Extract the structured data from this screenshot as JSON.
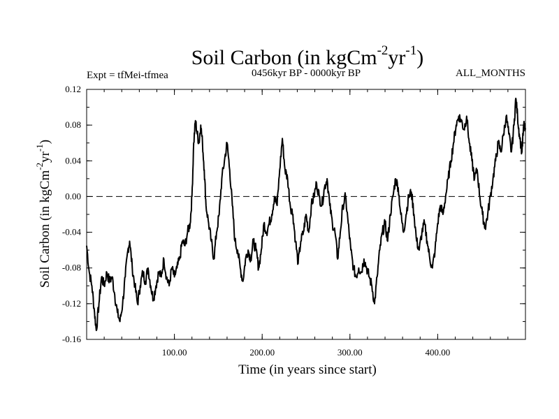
{
  "chart_data": {
    "type": "line",
    "title_main": "Soil Carbon (in kgCm",
    "title_sup1": "-2",
    "title_mid": "yr",
    "title_sup2": "-1",
    "title_end": ")",
    "left_label": "Expt = tfMei-tfmea",
    "center_label": "0456kyr BP - 0000kyr BP",
    "right_label": "ALL_MONTHS",
    "xlabel": "Time (in years since start)",
    "ylabel_main": "Soil Carbon (in kgCm",
    "ylabel_sup1": "-2",
    "ylabel_mid": "yr",
    "ylabel_sup2": "-1",
    "ylabel_end": ")",
    "xlim": [
      0,
      500
    ],
    "ylim": [
      -0.16,
      0.12
    ],
    "xticks": [
      100,
      200,
      300,
      400
    ],
    "xtick_labels": [
      "100.00",
      "200.00",
      "300.00",
      "400.00"
    ],
    "yticks": [
      0.12,
      0.08,
      0.04,
      0.0,
      -0.04,
      -0.08,
      -0.12,
      -0.16
    ],
    "ytick_labels": [
      "0.12",
      "0.08",
      "0.04",
      "0.00",
      "-0.04",
      "-0.08",
      "-0.12",
      "-0.16"
    ],
    "zero_line": 0.0,
    "series_points": [
      [
        0,
        -0.055
      ],
      [
        3,
        -0.085
      ],
      [
        6,
        -0.1
      ],
      [
        9,
        -0.13
      ],
      [
        11,
        -0.15
      ],
      [
        14,
        -0.12
      ],
      [
        17,
        -0.09
      ],
      [
        20,
        -0.1
      ],
      [
        23,
        -0.085
      ],
      [
        26,
        -0.095
      ],
      [
        29,
        -0.09
      ],
      [
        32,
        -0.11
      ],
      [
        35,
        -0.13
      ],
      [
        38,
        -0.14
      ],
      [
        41,
        -0.12
      ],
      [
        44,
        -0.09
      ],
      [
        47,
        -0.06
      ],
      [
        49,
        -0.05
      ],
      [
        52,
        -0.08
      ],
      [
        55,
        -0.1
      ],
      [
        58,
        -0.12
      ],
      [
        61,
        -0.1
      ],
      [
        64,
        -0.085
      ],
      [
        67,
        -0.095
      ],
      [
        70,
        -0.08
      ],
      [
        73,
        -0.1
      ],
      [
        76,
        -0.115
      ],
      [
        79,
        -0.1
      ],
      [
        82,
        -0.085
      ],
      [
        85,
        -0.09
      ],
      [
        88,
        -0.07
      ],
      [
        91,
        -0.09
      ],
      [
        94,
        -0.1
      ],
      [
        97,
        -0.08
      ],
      [
        100,
        -0.09
      ],
      [
        103,
        -0.08
      ],
      [
        106,
        -0.07
      ],
      [
        109,
        -0.05
      ],
      [
        112,
        -0.055
      ],
      [
        115,
        -0.04
      ],
      [
        118,
        -0.03
      ],
      [
        120,
        0.0
      ],
      [
        122,
        0.06
      ],
      [
        124,
        0.085
      ],
      [
        126,
        0.07
      ],
      [
        128,
        0.06
      ],
      [
        130,
        0.08
      ],
      [
        132,
        0.06
      ],
      [
        134,
        0.03
      ],
      [
        136,
        -0.01
      ],
      [
        139,
        -0.03
      ],
      [
        142,
        -0.05
      ],
      [
        145,
        -0.07
      ],
      [
        148,
        -0.04
      ],
      [
        151,
        -0.02
      ],
      [
        154,
        0.02
      ],
      [
        157,
        0.04
      ],
      [
        160,
        0.06
      ],
      [
        163,
        0.03
      ],
      [
        166,
        -0.01
      ],
      [
        169,
        -0.05
      ],
      [
        172,
        -0.06
      ],
      [
        175,
        -0.08
      ],
      [
        178,
        -0.095
      ],
      [
        181,
        -0.07
      ],
      [
        184,
        -0.06
      ],
      [
        187,
        -0.07
      ],
      [
        190,
        -0.05
      ],
      [
        193,
        -0.06
      ],
      [
        196,
        -0.08
      ],
      [
        199,
        -0.06
      ],
      [
        202,
        -0.03
      ],
      [
        205,
        -0.04
      ],
      [
        208,
        -0.03
      ],
      [
        211,
        -0.02
      ],
      [
        214,
        0.0
      ],
      [
        217,
        -0.01
      ],
      [
        220,
        0.03
      ],
      [
        223,
        0.065
      ],
      [
        226,
        0.03
      ],
      [
        229,
        0.02
      ],
      [
        232,
        -0.01
      ],
      [
        235,
        -0.02
      ],
      [
        238,
        -0.05
      ],
      [
        241,
        -0.075
      ],
      [
        244,
        -0.05
      ],
      [
        247,
        -0.04
      ],
      [
        250,
        -0.02
      ],
      [
        253,
        -0.04
      ],
      [
        256,
        -0.01
      ],
      [
        259,
        0.0
      ],
      [
        262,
        0.015
      ],
      [
        265,
        0.0
      ],
      [
        268,
        -0.01
      ],
      [
        271,
        0.01
      ],
      [
        274,
        0.02
      ],
      [
        277,
        -0.01
      ],
      [
        280,
        -0.03
      ],
      [
        283,
        -0.04
      ],
      [
        286,
        -0.07
      ],
      [
        289,
        -0.04
      ],
      [
        292,
        -0.01
      ],
      [
        295,
        0.0
      ],
      [
        298,
        -0.03
      ],
      [
        301,
        -0.06
      ],
      [
        304,
        -0.08
      ],
      [
        307,
        -0.09
      ],
      [
        310,
        -0.08
      ],
      [
        313,
        -0.085
      ],
      [
        316,
        -0.07
      ],
      [
        319,
        -0.08
      ],
      [
        322,
        -0.09
      ],
      [
        325,
        -0.1
      ],
      [
        328,
        -0.12
      ],
      [
        331,
        -0.09
      ],
      [
        334,
        -0.06
      ],
      [
        337,
        -0.04
      ],
      [
        340,
        -0.03
      ],
      [
        343,
        -0.05
      ],
      [
        346,
        -0.02
      ],
      [
        349,
        0.0
      ],
      [
        352,
        0.02
      ],
      [
        355,
        0.01
      ],
      [
        358,
        -0.02
      ],
      [
        361,
        -0.04
      ],
      [
        364,
        -0.02
      ],
      [
        367,
        0.0
      ],
      [
        370,
        0.005
      ],
      [
        373,
        -0.02
      ],
      [
        376,
        -0.05
      ],
      [
        379,
        -0.06
      ],
      [
        382,
        -0.04
      ],
      [
        385,
        -0.03
      ],
      [
        388,
        -0.05
      ],
      [
        391,
        -0.07
      ],
      [
        394,
        -0.08
      ],
      [
        397,
        -0.06
      ],
      [
        400,
        -0.03
      ],
      [
        403,
        -0.01
      ],
      [
        406,
        -0.02
      ],
      [
        409,
        0.0
      ],
      [
        412,
        0.02
      ],
      [
        415,
        0.04
      ],
      [
        418,
        0.06
      ],
      [
        421,
        0.08
      ],
      [
        424,
        0.09
      ],
      [
        427,
        0.085
      ],
      [
        430,
        0.075
      ],
      [
        433,
        0.09
      ],
      [
        436,
        0.06
      ],
      [
        439,
        0.04
      ],
      [
        442,
        0.02
      ],
      [
        445,
        0.03
      ],
      [
        448,
        0.0
      ],
      [
        451,
        -0.02
      ],
      [
        454,
        -0.035
      ],
      [
        457,
        -0.02
      ],
      [
        460,
        0.0
      ],
      [
        463,
        0.02
      ],
      [
        466,
        0.04
      ],
      [
        469,
        0.06
      ],
      [
        472,
        0.05
      ],
      [
        475,
        0.07
      ],
      [
        478,
        0.09
      ],
      [
        481,
        0.07
      ],
      [
        484,
        0.05
      ],
      [
        487,
        0.08
      ],
      [
        489,
        0.11
      ],
      [
        491,
        0.09
      ],
      [
        493,
        0.07
      ],
      [
        496,
        0.05
      ],
      [
        498,
        0.08
      ],
      [
        500,
        0.075
      ]
    ]
  }
}
